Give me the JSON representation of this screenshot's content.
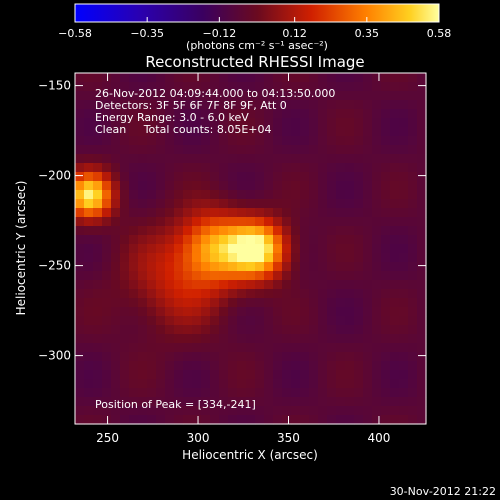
{
  "chart_data": {
    "type": "heatmap",
    "title": "Reconstructed RHESSI Image",
    "xlabel": "Heliocentric X (arcsec)",
    "ylabel": "Heliocentric Y (arcsec)",
    "xlim": [
      232,
      426
    ],
    "ylim": [
      -338,
      -143
    ],
    "x_ticks": [
      250,
      300,
      350,
      400
    ],
    "y_ticks": [
      -150,
      -200,
      -250,
      -300
    ],
    "colorbar": {
      "ticks": [
        -0.58,
        -0.35,
        -0.12,
        0.12,
        0.35,
        0.58
      ],
      "tick_labels": [
        "−0.58",
        "−0.35",
        "−0.12",
        "0.12",
        "0.35",
        "0.58"
      ],
      "label": "(photons cm⁻² s⁻¹ asec⁻²)",
      "range": [
        -0.58,
        0.58
      ]
    },
    "annotations": [
      "26-Nov-2012 04:09:44.000 to 04:13:50.000",
      "Detectors: 3F 5F 6F 7F 8F 9F, Att 0",
      "Energy Range: 3.0 - 6.0 keV",
      "Clean     Total counts: 8.05E+04"
    ],
    "peak_label": "Position of Peak = [334,-241]",
    "sources": [
      {
        "x": 240,
        "y": -211,
        "peak": 0.58,
        "sigma": 9
      },
      {
        "x": 334,
        "y": -241,
        "peak": 0.58,
        "sigma": 11
      },
      {
        "x": 310,
        "y": -240,
        "peak": 0.42,
        "sigma": 14
      },
      {
        "x": 288,
        "y": -258,
        "peak": 0.2,
        "sigma": 20
      }
    ]
  },
  "timestamp": "30-Nov-2012 21:22"
}
